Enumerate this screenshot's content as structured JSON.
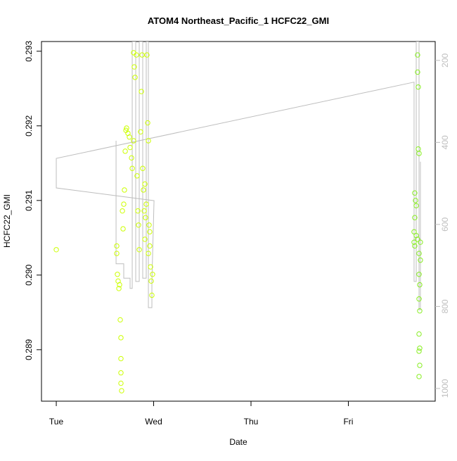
{
  "chart_data": {
    "type": "scatter",
    "title": "ATOM4 Northeast_Pacific_1 HCFC22_GMI",
    "xlabel": "Date",
    "ylabel": "HCFC22_GMI",
    "xlim": [
      -0.152,
      3.892
    ],
    "xticks": [
      {
        "value": 0,
        "label": "Tue"
      },
      {
        "value": 1,
        "label": "Wed"
      },
      {
        "value": 2,
        "label": "Thu"
      },
      {
        "value": 3,
        "label": "Fri"
      }
    ],
    "ylim": [
      0.28831,
      0.29313
    ],
    "yticks": [
      0.289,
      {
        "value": 0.29,
        "label": "0.290"
      },
      0.291,
      0.292,
      0.293
    ],
    "y2lim": [
      1031,
      154
    ],
    "y2ticks": [
      200,
      400,
      600,
      800,
      1000
    ],
    "series": [
      {
        "color": "#ccff00",
        "x": [
          0,
          0.621,
          0.621,
          0.628,
          0.635,
          0.643,
          0.65,
          0.657,
          0.664,
          0.664,
          0.664,
          0.664,
          0.671,
          0.679,
          0.686,
          0.693,
          0.7,
          0.708,
          0.715,
          0.722,
          0.736,
          0.751,
          0.758,
          0.773,
          0.78,
          0.794,
          0.794,
          0.801,
          0.809,
          0.823,
          0.83,
          0.838,
          0.845,
          0.852,
          0.866,
          0.874,
          0.881,
          0.888,
          0.895,
          0.903,
          0.91,
          0.917,
          0.931,
          0.939,
          0.946,
          0.953,
          0.96,
          0.968,
          0.975,
          0.982,
          0.989,
          0.96,
          0.946,
          0.924,
          0.91
        ],
        "values": [
          0.29034,
          0.29039,
          0.29029,
          0.29001,
          0.28992,
          0.28982,
          0.28987,
          0.2894,
          0.28916,
          0.28888,
          0.28869,
          0.28855,
          0.28845,
          0.29086,
          0.29062,
          0.29095,
          0.29114,
          0.29166,
          0.29194,
          0.29197,
          0.2919,
          0.29185,
          0.29171,
          0.29157,
          0.29143,
          0.2918,
          0.29298,
          0.29279,
          0.29265,
          0.29295,
          0.29133,
          0.29086,
          0.29067,
          0.29034,
          0.29192,
          0.29246,
          0.29295,
          0.29143,
          0.29114,
          0.29086,
          0.29048,
          0.29077,
          0.29295,
          0.29204,
          0.2918,
          0.29067,
          0.29039,
          0.29011,
          0.28992,
          0.28973,
          0.29001,
          0.29058,
          0.29029,
          0.29095,
          0.29122
        ]
      },
      {
        "color": "#88ee22",
        "x": [
          3.711,
          3.711,
          3.718,
          3.718,
          3.726,
          3.682,
          3.69,
          3.697,
          3.682,
          3.675,
          3.675,
          3.682,
          3.697,
          3.711,
          3.726,
          3.74,
          3.74,
          3.726,
          3.733,
          3.726,
          3.733,
          3.726,
          3.733,
          3.726,
          3.733,
          3.726
        ],
        "values": [
          0.29295,
          0.29272,
          0.29252,
          0.29169,
          0.29163,
          0.2911,
          0.291,
          0.29093,
          0.29077,
          0.29058,
          0.29044,
          0.29039,
          0.29053,
          0.29048,
          0.29029,
          0.29044,
          0.2902,
          0.29001,
          0.28987,
          0.28968,
          0.28952,
          0.28921,
          0.28902,
          0.28898,
          0.28879,
          0.28864
        ]
      },
      {
        "color": "#bebebe",
        "axis": "y2",
        "x": [
          0.614,
          0.614,
          0.693,
          0.693,
          0.758,
          0.758,
          0.78,
          0.78,
          0.816,
          0.816,
          0.852,
          0.852,
          0.888,
          0.888,
          0.924,
          0.924,
          0.946,
          0.946,
          0.982,
          0.982,
          1.004,
          0,
          0,
          3.675,
          3.675,
          3.697,
          3.697,
          3.726,
          3.726,
          3.74,
          3.74
        ],
        "values": [
          396,
          696,
          696,
          731,
          731,
          756,
          756,
          154,
          154,
          739,
          739,
          154,
          154,
          731,
          731,
          154,
          154,
          803,
          803,
          739,
          542,
          511,
          439,
          253,
          739,
          739,
          154,
          154,
          808,
          808,
          447
        ]
      }
    ]
  }
}
